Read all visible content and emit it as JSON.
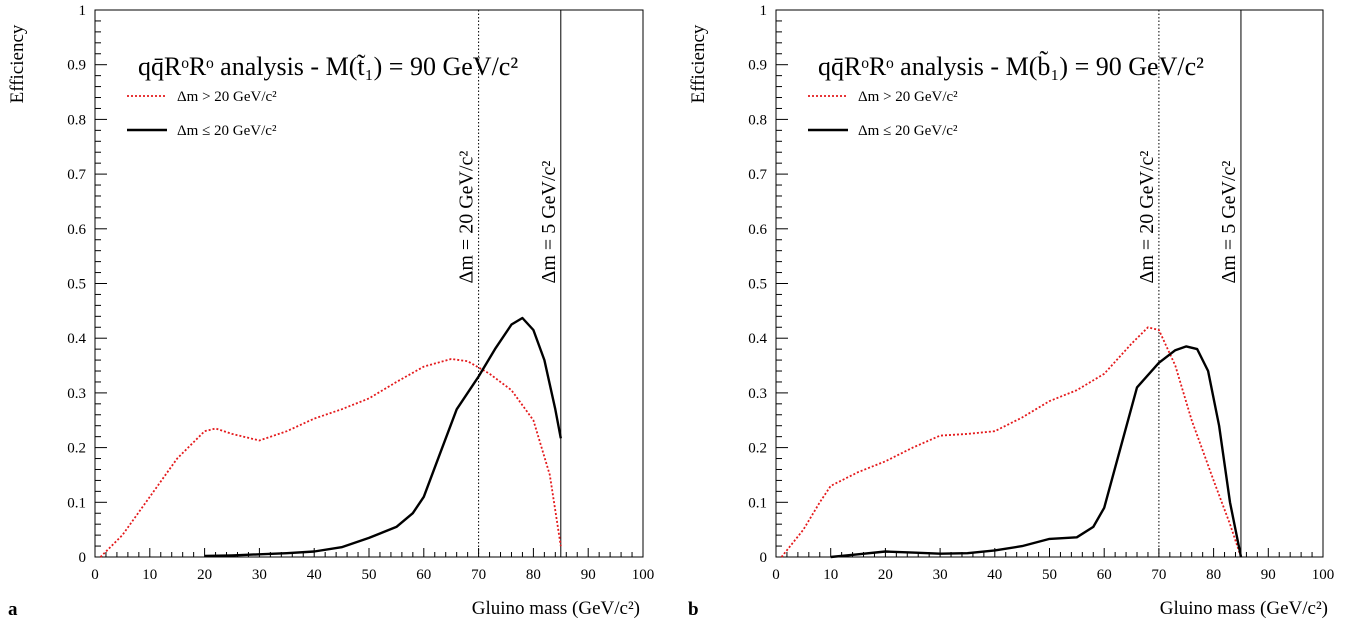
{
  "chart_data": [
    {
      "type": "line",
      "panel_label": "a",
      "title": "qq̄RᵒRᵒ analysis - M(t̃₁) = 90 GeV/c²",
      "xlabel": "Gluino mass (GeV/c²)",
      "ylabel": "Efficiency",
      "xlim": [
        0,
        100
      ],
      "ylim": [
        0,
        1
      ],
      "x_ticks": [
        "0",
        "10",
        "20",
        "30",
        "40",
        "50",
        "60",
        "70",
        "80",
        "90",
        "100"
      ],
      "y_ticks": [
        "0",
        "0.1",
        "0.2",
        "0.3",
        "0.4",
        "0.5",
        "0.6",
        "0.7",
        "0.8",
        "0.9",
        "1"
      ],
      "legend_position": "top-left",
      "cut_lines": [
        {
          "x": 70,
          "label": "Δm = 20 GeV/c²",
          "style": "dotted"
        },
        {
          "x": 85,
          "label": "Δm = 5 GeV/c²",
          "style": "solid"
        }
      ],
      "series": [
        {
          "name": "Δm > 20 GeV/c²",
          "color": "#e41a1c",
          "style": "dotted",
          "points": [
            [
              1,
              0
            ],
            [
              5,
              0.04
            ],
            [
              10,
              0.11
            ],
            [
              15,
              0.18
            ],
            [
              20,
              0.23
            ],
            [
              22,
              0.235
            ],
            [
              25,
              0.225
            ],
            [
              30,
              0.213
            ],
            [
              35,
              0.23
            ],
            [
              40,
              0.253
            ],
            [
              45,
              0.27
            ],
            [
              50,
              0.29
            ],
            [
              55,
              0.32
            ],
            [
              60,
              0.348
            ],
            [
              65,
              0.362
            ],
            [
              68,
              0.358
            ],
            [
              72,
              0.335
            ],
            [
              76,
              0.305
            ],
            [
              80,
              0.25
            ],
            [
              83,
              0.15
            ],
            [
              85,
              0.02
            ]
          ]
        },
        {
          "name": "Δm ≤ 20 GeV/c²",
          "color": "#000000",
          "style": "solid",
          "points": [
            [
              20,
              0.002
            ],
            [
              25,
              0.003
            ],
            [
              30,
              0.005
            ],
            [
              35,
              0.007
            ],
            [
              40,
              0.01
            ],
            [
              45,
              0.018
            ],
            [
              50,
              0.035
            ],
            [
              55,
              0.055
            ],
            [
              58,
              0.08
            ],
            [
              60,
              0.11
            ],
            [
              63,
              0.19
            ],
            [
              66,
              0.27
            ],
            [
              70,
              0.33
            ],
            [
              73,
              0.38
            ],
            [
              76,
              0.425
            ],
            [
              78,
              0.437
            ],
            [
              80,
              0.415
            ],
            [
              82,
              0.36
            ],
            [
              84,
              0.27
            ],
            [
              85,
              0.217
            ]
          ]
        }
      ]
    },
    {
      "type": "line",
      "panel_label": "b",
      "title": "qq̄RᵒRᵒ analysis - M(b̃₁) = 90 GeV/c²",
      "xlabel": "Gluino mass (GeV/c²)",
      "ylabel": "Efficiency",
      "xlim": [
        0,
        100
      ],
      "ylim": [
        0,
        1
      ],
      "x_ticks": [
        "0",
        "10",
        "20",
        "30",
        "40",
        "50",
        "60",
        "70",
        "80",
        "90",
        "100"
      ],
      "y_ticks": [
        "0",
        "0.1",
        "0.2",
        "0.3",
        "0.4",
        "0.5",
        "0.6",
        "0.7",
        "0.8",
        "0.9",
        "1"
      ],
      "legend_position": "top-left",
      "cut_lines": [
        {
          "x": 70,
          "label": "Δm = 20 GeV/c²",
          "style": "dotted"
        },
        {
          "x": 85,
          "label": "Δm = 5 GeV/c²",
          "style": "solid"
        }
      ],
      "series": [
        {
          "name": "Δm > 20 GeV/c²",
          "color": "#e41a1c",
          "style": "dotted",
          "points": [
            [
              1,
              0
            ],
            [
              5,
              0.05
            ],
            [
              8,
              0.1
            ],
            [
              10,
              0.13
            ],
            [
              15,
              0.155
            ],
            [
              20,
              0.175
            ],
            [
              25,
              0.2
            ],
            [
              30,
              0.222
            ],
            [
              35,
              0.225
            ],
            [
              40,
              0.23
            ],
            [
              45,
              0.255
            ],
            [
              50,
              0.285
            ],
            [
              55,
              0.305
            ],
            [
              60,
              0.335
            ],
            [
              65,
              0.39
            ],
            [
              68,
              0.42
            ],
            [
              70,
              0.415
            ],
            [
              73,
              0.35
            ],
            [
              76,
              0.25
            ],
            [
              80,
              0.14
            ],
            [
              83,
              0.06
            ],
            [
              85,
              0
            ]
          ]
        },
        {
          "name": "Δm ≤ 20 GeV/c²",
          "color": "#000000",
          "style": "solid",
          "points": [
            [
              10,
              0
            ],
            [
              15,
              0.005
            ],
            [
              20,
              0.01
            ],
            [
              25,
              0.008
            ],
            [
              30,
              0.006
            ],
            [
              35,
              0.007
            ],
            [
              40,
              0.012
            ],
            [
              45,
              0.02
            ],
            [
              50,
              0.033
            ],
            [
              55,
              0.036
            ],
            [
              58,
              0.055
            ],
            [
              60,
              0.09
            ],
            [
              63,
              0.2
            ],
            [
              66,
              0.31
            ],
            [
              70,
              0.355
            ],
            [
              73,
              0.378
            ],
            [
              75,
              0.385
            ],
            [
              77,
              0.38
            ],
            [
              79,
              0.34
            ],
            [
              81,
              0.24
            ],
            [
              83,
              0.1
            ],
            [
              85,
              0
            ]
          ]
        }
      ]
    }
  ]
}
